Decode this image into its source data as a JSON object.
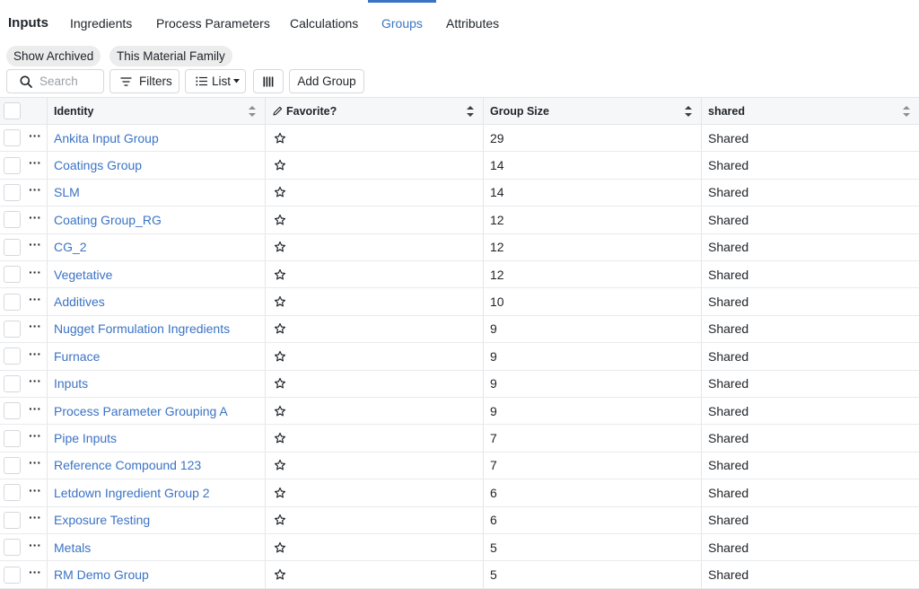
{
  "tabs": [
    {
      "label": "Inputs"
    },
    {
      "label": "Ingredients"
    },
    {
      "label": "Process Parameters"
    },
    {
      "label": "Calculations"
    },
    {
      "label": "Groups"
    },
    {
      "label": "Attributes"
    }
  ],
  "active_tab": "Groups",
  "accent_color": "#3b73c4",
  "pills": {
    "show_archived": "Show Archived",
    "material_family": "This Material Family"
  },
  "toolbar": {
    "search_placeholder": "Search",
    "filters_label": "Filters",
    "list_label": "List",
    "add_group_label": "Add Group"
  },
  "table": {
    "headers": {
      "identity": "Identity",
      "favorite": "Favorite?",
      "group_size": "Group Size",
      "shared": "shared"
    },
    "rows": [
      {
        "name": "Ankita Input Group",
        "size": "29",
        "shared": "Shared"
      },
      {
        "name": "Coatings Group",
        "size": "14",
        "shared": "Shared"
      },
      {
        "name": "SLM",
        "size": "14",
        "shared": "Shared"
      },
      {
        "name": "Coating Group_RG",
        "size": "12",
        "shared": "Shared"
      },
      {
        "name": "CG_2",
        "size": "12",
        "shared": "Shared"
      },
      {
        "name": "Vegetative",
        "size": "12",
        "shared": "Shared"
      },
      {
        "name": "Additives",
        "size": "10",
        "shared": "Shared"
      },
      {
        "name": "Nugget Formulation Ingredients",
        "size": "9",
        "shared": "Shared"
      },
      {
        "name": "Furnace",
        "size": "9",
        "shared": "Shared"
      },
      {
        "name": "Inputs",
        "size": "9",
        "shared": "Shared"
      },
      {
        "name": "Process Parameter Grouping A",
        "size": "9",
        "shared": "Shared"
      },
      {
        "name": "Pipe Inputs",
        "size": "7",
        "shared": "Shared"
      },
      {
        "name": "Reference Compound 123",
        "size": "7",
        "shared": "Shared"
      },
      {
        "name": "Letdown Ingredient Group 2",
        "size": "6",
        "shared": "Shared"
      },
      {
        "name": "Exposure Testing",
        "size": "6",
        "shared": "Shared"
      },
      {
        "name": "Metals",
        "size": "5",
        "shared": "Shared"
      },
      {
        "name": "RM Demo Group",
        "size": "5",
        "shared": "Shared"
      }
    ]
  }
}
